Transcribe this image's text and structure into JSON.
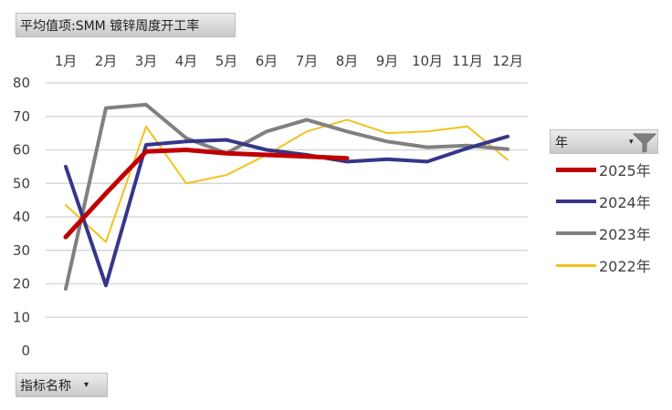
{
  "value_field": {
    "label": "平均值项:SMM 镀锌周度开工率"
  },
  "axis_field": {
    "label": "指标名称",
    "caret": "▾"
  },
  "legend_field": {
    "label": "年",
    "caret": "▾",
    "icon": "filter-funnel-icon"
  },
  "chart_data": {
    "type": "line",
    "categories": [
      "1月",
      "2月",
      "3月",
      "4月",
      "5月",
      "6月",
      "7月",
      "8月",
      "9月",
      "10月",
      "11月",
      "12月"
    ],
    "ylim": [
      0,
      80
    ],
    "yticks": [
      0,
      10,
      20,
      30,
      40,
      50,
      60,
      70,
      80
    ],
    "grid": true,
    "legend_position": "right",
    "series": [
      {
        "name": "2025年",
        "color": "#c00000",
        "width": 5,
        "values": [
          34,
          47,
          59.5,
          60,
          59,
          58.5,
          58,
          57.5,
          null,
          null,
          null,
          null
        ]
      },
      {
        "name": "2024年",
        "color": "#363689",
        "width": 4,
        "values": [
          55,
          19.5,
          61.5,
          62.5,
          63,
          60,
          58.5,
          56.5,
          57.2,
          56.5,
          60.5,
          64
        ]
      },
      {
        "name": "2023年",
        "color": "#808080",
        "width": 4,
        "values": [
          18.5,
          72.5,
          73.5,
          63.5,
          59,
          65.5,
          69,
          65.5,
          62.5,
          60.8,
          61.3,
          60.2
        ]
      },
      {
        "name": "2022年",
        "color": "#f2c21c",
        "width": 2,
        "values": [
          43.5,
          32.5,
          67,
          50,
          52.5,
          58.5,
          65.5,
          69,
          65,
          65.5,
          67,
          57
        ]
      }
    ]
  }
}
